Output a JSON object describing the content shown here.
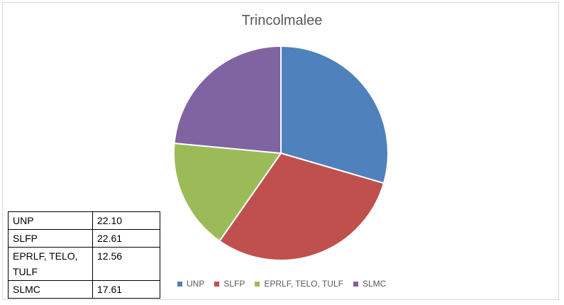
{
  "chart_data": {
    "type": "pie",
    "title": "Trincolmalee",
    "categories": [
      "UNP",
      "SLFP",
      "EPRLF, TELO, TULF",
      "SLMC"
    ],
    "values": [
      22.1,
      22.61,
      12.56,
      17.61
    ],
    "value_labels": [
      "22.10",
      "22.61",
      "12.56",
      "17.61"
    ],
    "colors": [
      "#4f81bd",
      "#c0504d",
      "#9bbb59",
      "#8064a2"
    ],
    "legend_position": "bottom",
    "start_angle_deg": 0,
    "direction": "clockwise"
  }
}
